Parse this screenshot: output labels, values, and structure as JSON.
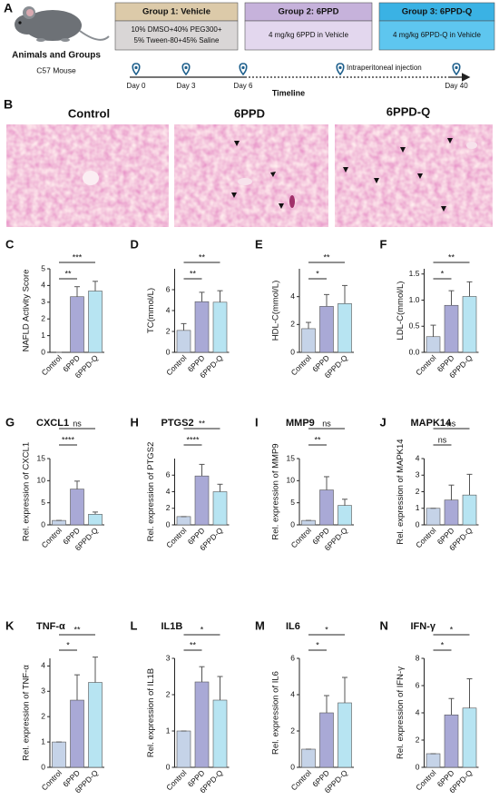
{
  "header": {
    "panel": "A",
    "title": "Animals and Groups",
    "strain": "C57 Mouse"
  },
  "groups": [
    {
      "title": "Group 1: Vehicle",
      "lines": [
        "10% DMSO+40% PEG300+",
        "5% Tween-80+45% Saline"
      ]
    },
    {
      "title": "Group 2: 6PPD",
      "lines": [
        "4 mg/kg 6PPD in Vehicle"
      ]
    },
    {
      "title": "Group 3:  6PPD-Q",
      "lines": [
        "4 mg/kg 6PPD-Q in Vehicle"
      ]
    }
  ],
  "timeline": {
    "label": "Timeline",
    "days": [
      "Day 0",
      "Day 3",
      "Day 6",
      "Day 40"
    ],
    "event": "Intraperitoneal injection"
  },
  "histology": {
    "panel": "B",
    "labels": [
      "Control",
      "6PPD",
      "6PPD-Q"
    ]
  },
  "chart_data": [
    {
      "type": "bar",
      "panel": "C",
      "y_label": "NAFLD Activity Score",
      "categories": [
        "Control",
        "6PPD",
        "6PPD-Q"
      ],
      "values": [
        0,
        3.33,
        3.67
      ],
      "errors": [
        0,
        0.6,
        0.58
      ],
      "colors": [
        "#c5d3e8",
        "#a9a9d6",
        "#b7e4f2"
      ],
      "ylim": [
        0,
        5
      ],
      "yticks": [
        0,
        1,
        2,
        3,
        4,
        5
      ],
      "annotations": [
        "**",
        "***"
      ]
    },
    {
      "type": "bar",
      "panel": "D",
      "y_label": "TC(mmol/L)",
      "categories": [
        "Control",
        "6PPD",
        "6PPD-Q"
      ],
      "values": [
        2.1,
        4.85,
        4.8
      ],
      "errors": [
        0.65,
        0.9,
        1.1
      ],
      "colors": [
        "#c5d3e8",
        "#a9a9d6",
        "#b7e4f2"
      ],
      "ylim": [
        0,
        8
      ],
      "yticks": [
        0,
        2,
        4,
        6
      ],
      "annotations": [
        "**",
        "**"
      ]
    },
    {
      "type": "bar",
      "panel": "E",
      "y_label": "HDL-C(mmol/L)",
      "categories": [
        "Control",
        "6PPD",
        "6PPD-Q"
      ],
      "values": [
        1.7,
        3.3,
        3.5
      ],
      "errors": [
        0.45,
        0.85,
        1.3
      ],
      "colors": [
        "#c5d3e8",
        "#a9a9d6",
        "#b7e4f2"
      ],
      "ylim": [
        0,
        6
      ],
      "yticks": [
        0,
        2,
        4
      ],
      "annotations": [
        "*",
        "**"
      ]
    },
    {
      "type": "bar",
      "panel": "F",
      "y_label": "LDL-C(mmol/L)",
      "categories": [
        "Control",
        "6PPD",
        "6PPD-Q"
      ],
      "values": [
        0.3,
        0.9,
        1.07
      ],
      "errors": [
        0.22,
        0.28,
        0.28
      ],
      "colors": [
        "#c5d3e8",
        "#a9a9d6",
        "#b7e4f2"
      ],
      "ylim": [
        0,
        1.6
      ],
      "yticks": [
        {
          "value": 0,
          "label": "0.0"
        },
        0.5,
        {
          "value": 1,
          "label": "1.0"
        },
        1.5
      ],
      "annotations": [
        "*",
        "**"
      ]
    },
    {
      "type": "bar",
      "panel": "G",
      "title": "CXCL1",
      "y_label": "Rel. expression of CXCL1",
      "categories": [
        "Control",
        "6PPD",
        "6PPD-Q"
      ],
      "values": [
        1,
        8.1,
        2.4
      ],
      "errors": [
        0,
        1.8,
        0.5
      ],
      "colors": [
        "#c5d3e8",
        "#a9a9d6",
        "#b7e4f2"
      ],
      "ylim": [
        0,
        15
      ],
      "yticks": [
        0,
        5,
        10,
        15
      ],
      "annotations": [
        "****",
        "ns"
      ]
    },
    {
      "type": "bar",
      "panel": "H",
      "title": "PTGS2",
      "y_label": "Rel. expression of PTGS2",
      "categories": [
        "Control",
        "6PPD",
        "6PPD-Q"
      ],
      "values": [
        1,
        5.9,
        4.0
      ],
      "errors": [
        0,
        1.4,
        0.9
      ],
      "colors": [
        "#c5d3e8",
        "#a9a9d6",
        "#b7e4f2"
      ],
      "ylim": [
        0,
        8
      ],
      "yticks": [
        0,
        2,
        4,
        6
      ],
      "annotations": [
        "****",
        "**"
      ]
    },
    {
      "type": "bar",
      "panel": "I",
      "title": "MMP9",
      "y_label": "Rel. expression of MMP9",
      "categories": [
        "Control",
        "6PPD",
        "6PPD-Q"
      ],
      "values": [
        1,
        7.9,
        4.4
      ],
      "errors": [
        0,
        3,
        1.4
      ],
      "colors": [
        "#c5d3e8",
        "#a9a9d6",
        "#b7e4f2"
      ],
      "ylim": [
        0,
        15
      ],
      "yticks": [
        0,
        5,
        10,
        15
      ],
      "annotations": [
        "**",
        "ns"
      ]
    },
    {
      "type": "bar",
      "panel": "J",
      "title": "MAPK14",
      "y_label": "Rel. expression of MAPK14",
      "categories": [
        "Control",
        "6PPD",
        "6PPD-Q"
      ],
      "values": [
        1,
        1.5,
        1.8
      ],
      "errors": [
        0,
        0.9,
        1.25
      ],
      "colors": [
        "#c5d3e8",
        "#a9a9d6",
        "#b7e4f2"
      ],
      "ylim": [
        0,
        4
      ],
      "yticks": [
        0,
        1,
        2,
        3,
        4
      ],
      "annotations": [
        "ns",
        "ns"
      ]
    },
    {
      "type": "bar",
      "panel": "K",
      "title": "TNF-α",
      "y_label": "Rel. expression of TNF-α",
      "categories": [
        "Control",
        "6PPD",
        "6PPD-Q"
      ],
      "values": [
        1,
        2.65,
        3.35
      ],
      "errors": [
        0,
        1,
        1
      ],
      "colors": [
        "#c5d3e8",
        "#a9a9d6",
        "#b7e4f2"
      ],
      "ylim": [
        0,
        4.3
      ],
      "yticks": [
        0,
        1,
        2,
        3,
        4
      ],
      "annotations": [
        "*",
        "**"
      ]
    },
    {
      "type": "bar",
      "panel": "L",
      "title": "IL1B",
      "y_label": "Rel. expression of IL1B",
      "categories": [
        "Control",
        "6PPD",
        "6PPD-Q"
      ],
      "values": [
        1,
        2.35,
        1.85
      ],
      "errors": [
        0,
        0.42,
        0.65
      ],
      "colors": [
        "#c5d3e8",
        "#a9a9d6",
        "#b7e4f2"
      ],
      "ylim": [
        0,
        3
      ],
      "yticks": [
        0,
        1,
        2,
        3
      ],
      "annotations": [
        "**",
        "*"
      ]
    },
    {
      "type": "bar",
      "panel": "M",
      "title": "IL6",
      "y_label": "Rel. expression of IL6",
      "categories": [
        "Control",
        "6PPD",
        "6PPD-Q"
      ],
      "values": [
        1,
        3.0,
        3.55
      ],
      "errors": [
        0,
        0.95,
        1.4
      ],
      "colors": [
        "#c5d3e8",
        "#a9a9d6",
        "#b7e4f2"
      ],
      "ylim": [
        0,
        6
      ],
      "yticks": [
        0,
        2,
        4,
        6
      ],
      "annotations": [
        "*",
        "*"
      ]
    },
    {
      "type": "bar",
      "panel": "N",
      "title": "IFN-γ",
      "y_label": "Rel. expression of IFN-γ",
      "categories": [
        "Control",
        "6PPD",
        "6PPD-Q"
      ],
      "values": [
        1,
        3.85,
        4.35
      ],
      "errors": [
        0,
        1.2,
        2.15
      ],
      "colors": [
        "#c5d3e8",
        "#a9a9d6",
        "#b7e4f2"
      ],
      "ylim": [
        0,
        8
      ],
      "yticks": [
        0,
        2,
        4,
        6,
        8
      ],
      "annotations": [
        "*",
        "*"
      ]
    }
  ]
}
